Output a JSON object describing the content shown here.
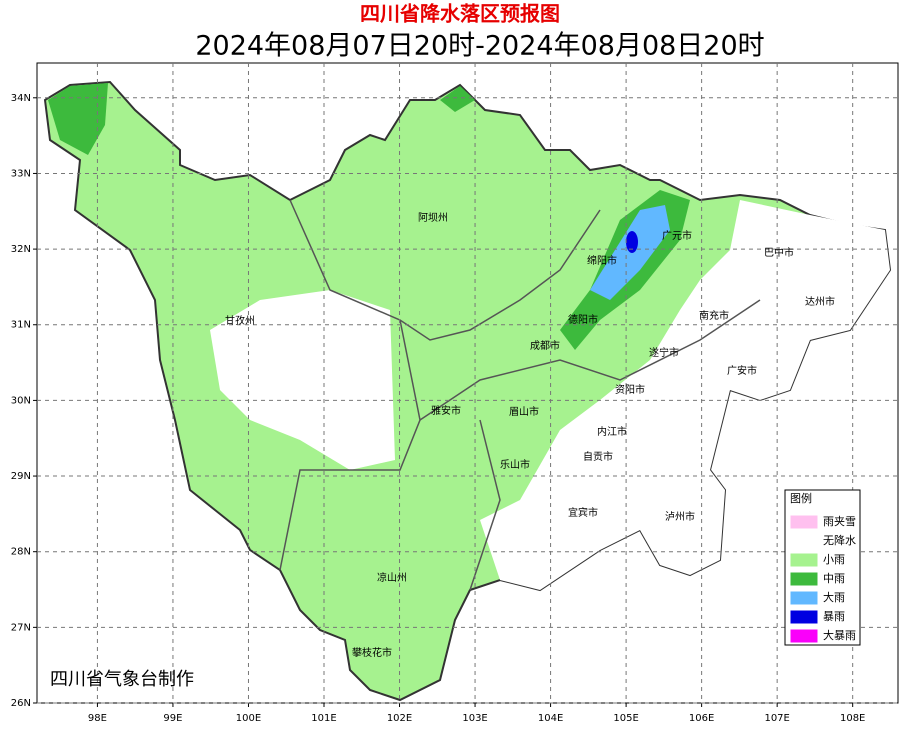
{
  "header": {
    "title": "四川省降水落区预报图",
    "subtitle": "2024年08月07日20时-2024年08月08日20时"
  },
  "map": {
    "xlim": [
      97.2,
      108.6
    ],
    "ylim": [
      26,
      34.46
    ],
    "xticks": [
      {
        "value": 98,
        "label": "98E"
      },
      {
        "value": 99,
        "label": "99E"
      },
      {
        "value": 100,
        "label": "100E"
      },
      {
        "value": 101,
        "label": "101E"
      },
      {
        "value": 102,
        "label": "102E"
      },
      {
        "value": 103,
        "label": "103E"
      },
      {
        "value": 104,
        "label": "104E"
      },
      {
        "value": 105,
        "label": "105E"
      },
      {
        "value": 106,
        "label": "106E"
      },
      {
        "value": 107,
        "label": "107E"
      },
      {
        "value": 108,
        "label": "108E"
      }
    ],
    "yticks": [
      {
        "value": 26,
        "label": "26N"
      },
      {
        "value": 27,
        "label": "27N"
      },
      {
        "value": 28,
        "label": "28N"
      },
      {
        "value": 29,
        "label": "29N"
      },
      {
        "value": 30,
        "label": "30N"
      },
      {
        "value": 31,
        "label": "31N"
      },
      {
        "value": 32,
        "label": "32N"
      },
      {
        "value": 33,
        "label": "33N"
      },
      {
        "value": 34,
        "label": "34N"
      }
    ],
    "places": [
      "阿坝州",
      "甘孜州",
      "绵阳市",
      "广元市",
      "巴中市",
      "达州市",
      "南充市",
      "德阳市",
      "成都市",
      "遂宁市",
      "广安市",
      "资阳市",
      "雅安市",
      "眉山市",
      "内江市",
      "自贡市",
      "乐山市",
      "宜宾市",
      "泸州市",
      "凉山州",
      "攀枝花市"
    ]
  },
  "legend": {
    "title": "图例",
    "items": [
      {
        "label": "雨夹雪",
        "color": "#ffc0ef"
      },
      {
        "label": "无降水",
        "color": "#ffffff"
      },
      {
        "label": "小雨",
        "color": "#a6f28f"
      },
      {
        "label": "中雨",
        "color": "#3dba3d"
      },
      {
        "label": "大雨",
        "color": "#61b8ff"
      },
      {
        "label": "暴雨",
        "color": "#0000e1"
      },
      {
        "label": "大暴雨",
        "color": "#fa00fa"
      }
    ]
  },
  "credit": "四川省气象台制作"
}
